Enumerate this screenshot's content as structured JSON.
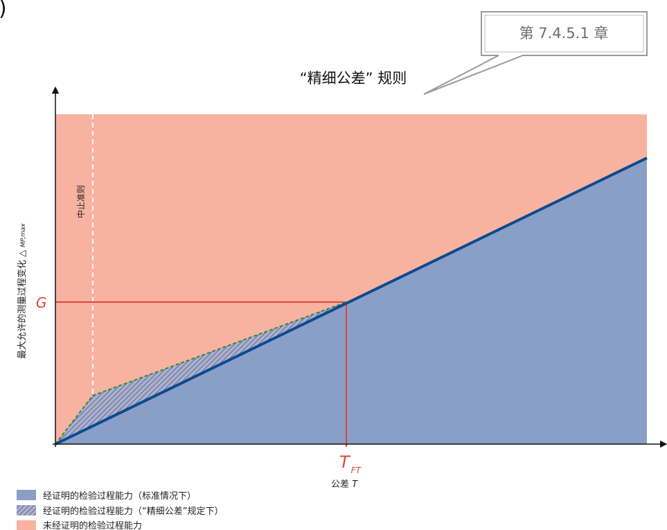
{
  "corner_mark": ")",
  "callout": {
    "text": "第 7.4.5.1 章"
  },
  "rule_title": "“精细公差” 规则",
  "axes": {
    "ylabel": "最大允许的测量过程变化 △",
    "ylabel_sub": "MP,max",
    "xlabel_prefix": "公差 ",
    "xlabel_var": "T"
  },
  "markers": {
    "g_label": "G",
    "tft_main": "T",
    "tft_sub": "FT",
    "abort_label": "中止准则"
  },
  "legend": [
    {
      "label": "经证明的检验过程能力（标准情况下）",
      "swatch": "solid-blue"
    },
    {
      "label": "经证明的检验过程能力（“精细公差”规定下）",
      "swatch": "hatched"
    },
    {
      "label": "未经证明的检验过程能力",
      "swatch": "solid-salmon"
    }
  ],
  "colors": {
    "unproven_region": "#f7b3a0",
    "proven_region": "#8a9fc8",
    "boundary_line": "#0d4a8e",
    "red_guides": "#e0453a",
    "fine_tolerance_curve": "#2f8a3e",
    "abort_line": "#ffffff"
  }
}
